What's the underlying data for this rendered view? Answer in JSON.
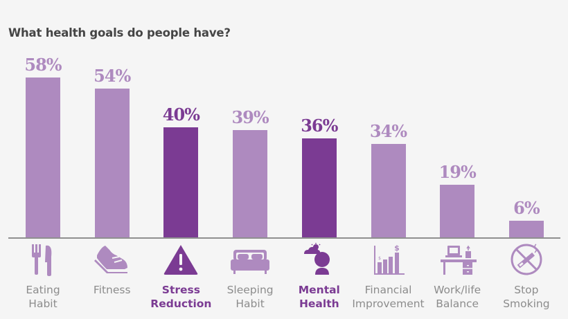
{
  "title": "What health goals do people have?",
  "colors": {
    "light": "#ae8abf",
    "dark": "#7b3b93",
    "label": "#8c8c8c",
    "background": "#f5f5f5"
  },
  "chart_data": {
    "type": "bar",
    "title": "What health goals do people have?",
    "xlabel": "",
    "ylabel": "",
    "ylim": [
      0,
      60
    ],
    "grid": false,
    "legend": "none",
    "categories": [
      "Eating Habit",
      "Fitness",
      "Stress Reduction",
      "Sleeping Habit",
      "Mental Health",
      "Financial Improvement",
      "Work/life Balance",
      "Stop Smoking"
    ],
    "values": [
      58,
      54,
      40,
      39,
      36,
      34,
      19,
      6
    ],
    "value_labels": [
      "58%",
      "54%",
      "40%",
      "39%",
      "36%",
      "34%",
      "19%",
      "6%"
    ],
    "highlighted": [
      "Stress Reduction",
      "Mental Health"
    ]
  },
  "items": [
    {
      "label1": "Eating",
      "label2": "Habit",
      "value": "58%",
      "icon": "fork-knife-icon"
    },
    {
      "label1": "Fitness",
      "label2": "",
      "value": "54%",
      "icon": "sneaker-icon"
    },
    {
      "label1": "Stress",
      "label2": "Reduction",
      "value": "40%",
      "icon": "warning-icon"
    },
    {
      "label1": "Sleeping",
      "label2": "Habit",
      "value": "39%",
      "icon": "bed-icon"
    },
    {
      "label1": "Mental",
      "label2": "Health",
      "value": "36%",
      "icon": "mental-health-icon"
    },
    {
      "label1": "Financial",
      "label2": "Improvement",
      "value": "34%",
      "icon": "bar-chart-dollar-icon"
    },
    {
      "label1": "Work/life",
      "label2": "Balance",
      "value": "19%",
      "icon": "desk-laptop-icon"
    },
    {
      "label1": "Stop",
      "label2": "Smoking",
      "value": "6%",
      "icon": "no-smoking-icon"
    }
  ]
}
